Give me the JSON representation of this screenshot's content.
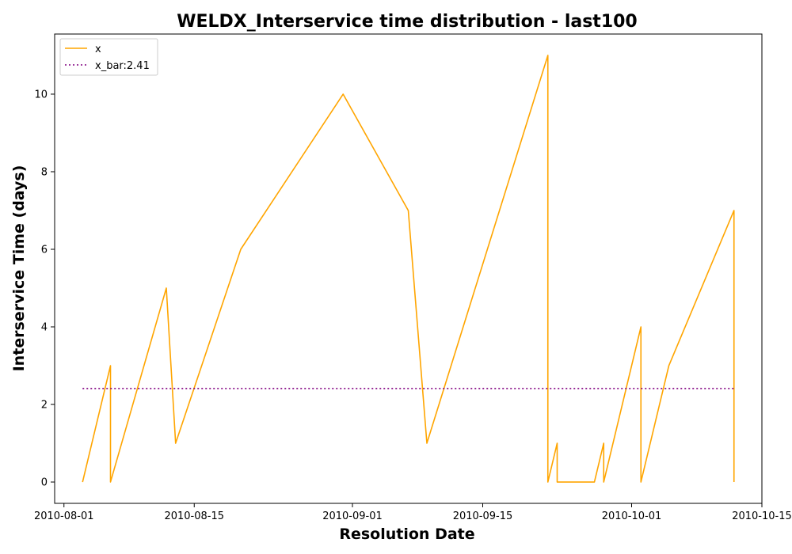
{
  "chart_data": {
    "type": "line",
    "title": "WELDX_Interservice time distribution - last100",
    "xlabel": "Resolution Date",
    "ylabel": "Interservice Time (days)",
    "xlim": [
      "2010-07-31",
      "2010-10-15"
    ],
    "ylim": [
      -0.55,
      11.55
    ],
    "x_ticks": [
      "2010-08-01",
      "2010-08-15",
      "2010-09-01",
      "2010-09-15",
      "2010-10-01",
      "2010-10-15"
    ],
    "y_ticks": [
      0,
      2,
      4,
      6,
      8,
      10
    ],
    "legend_position": "top-left",
    "grid": false,
    "series": [
      {
        "name": "x",
        "color": "#ffa500",
        "style": "solid",
        "x": [
          "2010-08-03",
          "2010-08-06",
          "2010-08-06",
          "2010-08-12",
          "2010-08-13",
          "2010-08-20",
          "2010-08-31",
          "2010-09-07",
          "2010-09-09",
          "2010-09-22",
          "2010-09-22",
          "2010-09-23",
          "2010-09-23",
          "2010-09-27",
          "2010-09-28",
          "2010-09-28",
          "2010-10-02",
          "2010-10-02",
          "2010-10-05",
          "2010-10-12",
          "2010-10-12"
        ],
        "y": [
          0,
          3,
          0,
          5,
          1,
          6,
          10,
          7,
          1,
          11,
          0,
          1,
          0,
          0,
          1,
          0,
          4,
          0,
          3,
          7,
          0
        ]
      },
      {
        "name": "x_bar:2.41",
        "color": "#800080",
        "style": "dotted",
        "x": [
          "2010-08-03",
          "2010-10-12"
        ],
        "y": [
          2.41,
          2.41
        ]
      }
    ]
  }
}
